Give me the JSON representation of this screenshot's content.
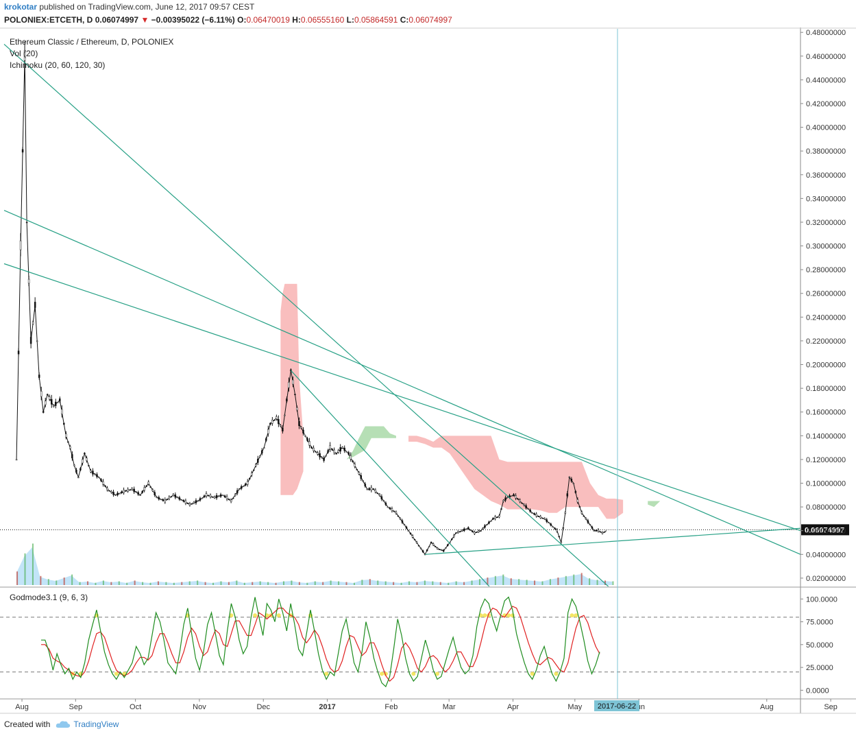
{
  "header": {
    "author": "krokotar",
    "published": "published on TradingView.com, June 12, 2017 09:57 CEST",
    "symbol": "POLONIEX:ETCETH, D",
    "last": "0.06074997",
    "arrow": "▼",
    "change": "−0.00395022 (−6.11%)",
    "o_label": "O:",
    "o": "0.06470019",
    "h_label": "H:",
    "h": "0.06555160",
    "l_label": "L:",
    "l": "0.05864591",
    "c_label": "C:",
    "c": "0.06074997"
  },
  "legend": {
    "title": "Ethereum Classic / Ethereum, D, POLONIEX",
    "vol": "Vol (20)",
    "ichimoku": "Ichimoku (20, 60, 120, 30)",
    "oscillator": "Godmode3.1 (9, 6, 3)"
  },
  "footer": {
    "created_with": "Created with",
    "brand": "TradingView"
  },
  "colors": {
    "trendline": "#26a085",
    "cloud_bear": "#f7a8a8",
    "cloud_bull": "#9ed49c",
    "volume_fill": "#a8d8f5",
    "osc_fast": "#1e8c1e",
    "osc_slow": "#e02020",
    "osc_highlight": "#f0e040",
    "price_badge": "#111111",
    "date_badge": "#7ec4d6"
  },
  "chart_data": {
    "type": "candlestick",
    "title": "Ethereum Classic / Ethereum, D, POLONIEX",
    "x_ticks": [
      "Aug",
      "Sep",
      "Oct",
      "Nov",
      "Dec",
      "2017",
      "Feb",
      "Mar",
      "Apr",
      "May",
      "Jun",
      "Aug",
      "Sep"
    ],
    "x_highlight": "2017-06-22",
    "y_ticks": [
      "0.48000000",
      "0.46000000",
      "0.44000000",
      "0.42000000",
      "0.40000000",
      "0.38000000",
      "0.36000000",
      "0.34000000",
      "0.32000000",
      "0.30000000",
      "0.28000000",
      "0.26000000",
      "0.24000000",
      "0.22000000",
      "0.20000000",
      "0.18000000",
      "0.16000000",
      "0.14000000",
      "0.12000000",
      "0.10000000",
      "0.08000000",
      "0.06000000",
      "0.04000000",
      "0.02000000"
    ],
    "ylim": [
      0.013,
      0.483
    ],
    "last_price": 0.06074997,
    "last_price_label": "0.06074997",
    "price": [
      [
        0,
        0.12
      ],
      [
        2,
        0.3
      ],
      [
        4,
        0.46
      ],
      [
        5,
        0.32
      ],
      [
        7,
        0.22
      ],
      [
        9,
        0.25
      ],
      [
        11,
        0.19
      ],
      [
        13,
        0.16
      ],
      [
        15,
        0.175
      ],
      [
        18,
        0.165
      ],
      [
        21,
        0.17
      ],
      [
        24,
        0.14
      ],
      [
        26,
        0.13
      ],
      [
        28,
        0.115
      ],
      [
        30,
        0.105
      ],
      [
        33,
        0.125
      ],
      [
        36,
        0.11
      ],
      [
        40,
        0.105
      ],
      [
        44,
        0.095
      ],
      [
        48,
        0.09
      ],
      [
        52,
        0.093
      ],
      [
        56,
        0.095
      ],
      [
        60,
        0.09
      ],
      [
        64,
        0.1
      ],
      [
        68,
        0.088
      ],
      [
        72,
        0.085
      ],
      [
        76,
        0.09
      ],
      [
        80,
        0.086
      ],
      [
        84,
        0.082
      ],
      [
        88,
        0.085
      ],
      [
        92,
        0.09
      ],
      [
        96,
        0.088
      ],
      [
        100,
        0.09
      ],
      [
        104,
        0.085
      ],
      [
        108,
        0.095
      ],
      [
        112,
        0.1
      ],
      [
        116,
        0.115
      ],
      [
        120,
        0.13
      ],
      [
        123,
        0.15
      ],
      [
        126,
        0.155
      ],
      [
        129,
        0.145
      ],
      [
        131,
        0.17
      ],
      [
        133,
        0.195
      ],
      [
        135,
        0.175
      ],
      [
        137,
        0.15
      ],
      [
        140,
        0.14
      ],
      [
        143,
        0.13
      ],
      [
        146,
        0.125
      ],
      [
        149,
        0.12
      ],
      [
        152,
        0.13
      ],
      [
        155,
        0.125
      ],
      [
        158,
        0.13
      ],
      [
        161,
        0.125
      ],
      [
        164,
        0.115
      ],
      [
        167,
        0.105
      ],
      [
        170,
        0.095
      ],
      [
        173,
        0.095
      ],
      [
        176,
        0.09
      ],
      [
        180,
        0.08
      ],
      [
        184,
        0.075
      ],
      [
        188,
        0.065
      ],
      [
        192,
        0.055
      ],
      [
        196,
        0.045
      ],
      [
        198,
        0.04
      ],
      [
        201,
        0.05
      ],
      [
        204,
        0.045
      ],
      [
        207,
        0.043
      ],
      [
        210,
        0.05
      ],
      [
        213,
        0.058
      ],
      [
        216,
        0.06
      ],
      [
        219,
        0.062
      ],
      [
        222,
        0.058
      ],
      [
        225,
        0.06
      ],
      [
        228,
        0.065
      ],
      [
        231,
        0.07
      ],
      [
        234,
        0.072
      ],
      [
        236,
        0.085
      ],
      [
        238,
        0.088
      ],
      [
        241,
        0.09
      ],
      [
        244,
        0.085
      ],
      [
        247,
        0.08
      ],
      [
        250,
        0.075
      ],
      [
        253,
        0.072
      ],
      [
        256,
        0.07
      ],
      [
        259,
        0.065
      ],
      [
        262,
        0.06
      ],
      [
        264,
        0.05
      ],
      [
        266,
        0.075
      ],
      [
        268,
        0.105
      ],
      [
        270,
        0.1
      ],
      [
        272,
        0.085
      ],
      [
        274,
        0.075
      ],
      [
        276,
        0.07
      ],
      [
        278,
        0.065
      ],
      [
        280,
        0.06
      ],
      [
        282,
        0.06
      ],
      [
        284,
        0.058
      ],
      [
        286,
        0.06
      ]
    ],
    "trendlines": [
      {
        "from": [
          -6,
          0.47
        ],
        "to": [
          308,
          -0.02
        ]
      },
      {
        "from": [
          -6,
          0.33
        ],
        "to": [
          380,
          0.04
        ]
      },
      {
        "from": [
          -6,
          0.285
        ],
        "to": [
          380,
          0.06
        ]
      },
      {
        "from": [
          198,
          0.04
        ],
        "to": [
          380,
          0.062
        ]
      },
      {
        "from": [
          133,
          0.195
        ],
        "to": [
          236,
          0.0
        ]
      }
    ],
    "cloud_bear": [
      {
        "x": [
          128,
          129,
          130,
          132,
          134,
          136,
          137,
          139
        ],
        "top": [
          0.245,
          0.26,
          0.268,
          0.268,
          0.268,
          0.268,
          0.19,
          0.14
        ],
        "bottom": [
          0.09,
          0.09,
          0.09,
          0.09,
          0.09,
          0.095,
          0.1,
          0.11
        ]
      },
      {
        "x": [
          190,
          194,
          198,
          202,
          206,
          210,
          214,
          218,
          222,
          226,
          230,
          234,
          238,
          242,
          246,
          250,
          254,
          258,
          262,
          266,
          270,
          274,
          278,
          282,
          286,
          290,
          294
        ],
        "top": [
          0.14,
          0.14,
          0.138,
          0.135,
          0.14,
          0.14,
          0.14,
          0.14,
          0.14,
          0.14,
          0.14,
          0.12,
          0.118,
          0.118,
          0.118,
          0.118,
          0.118,
          0.118,
          0.118,
          0.118,
          0.118,
          0.118,
          0.1,
          0.09,
          0.087,
          0.087,
          0.086
        ],
        "bottom": [
          0.135,
          0.135,
          0.133,
          0.13,
          0.13,
          0.125,
          0.115,
          0.105,
          0.095,
          0.09,
          0.085,
          0.082,
          0.078,
          0.078,
          0.078,
          0.078,
          0.077,
          0.075,
          0.075,
          0.08,
          0.08,
          0.08,
          0.08,
          0.08,
          0.07,
          0.07,
          0.075
        ]
      }
    ],
    "cloud_bull": [
      {
        "x": [
          160,
          163,
          166,
          169,
          172,
          175,
          178,
          181,
          184
        ],
        "top": [
          0.12,
          0.127,
          0.138,
          0.148,
          0.148,
          0.148,
          0.148,
          0.142,
          0.14
        ],
        "bottom": [
          0.12,
          0.122,
          0.125,
          0.128,
          0.138,
          0.138,
          0.138,
          0.138,
          0.138
        ]
      },
      {
        "x": [
          306,
          309,
          312
        ],
        "top": [
          0.085,
          0.085,
          0.085
        ],
        "bottom": [
          0.082,
          0.08,
          0.085
        ]
      }
    ],
    "volume": [
      18,
      42,
      55,
      12,
      8,
      6,
      10,
      14,
      4,
      5,
      3,
      6,
      4,
      5,
      3,
      6,
      4,
      3,
      5,
      4,
      3,
      4,
      5,
      6,
      4,
      3,
      5,
      4,
      6,
      3,
      4,
      5,
      4,
      3,
      5,
      6,
      4,
      3,
      5,
      4,
      6,
      5,
      4,
      3,
      7,
      8,
      6,
      5,
      4,
      3,
      5,
      4,
      6,
      5,
      4,
      3,
      5,
      4,
      6,
      8,
      10,
      12,
      14,
      9,
      8,
      7,
      6,
      5,
      8,
      10,
      12,
      14,
      16,
      9,
      7,
      6,
      5
    ],
    "oscillator": {
      "y_ticks": [
        "100.0000",
        "75.0000",
        "50.0000",
        "25.0000",
        "0.0000"
      ],
      "ylim": [
        -8,
        110
      ],
      "levels": [
        80,
        20
      ],
      "fast": [
        55,
        55,
        42,
        22,
        40,
        28,
        18,
        24,
        12,
        20,
        14,
        30,
        55,
        72,
        88,
        65,
        42,
        28,
        18,
        12,
        20,
        14,
        22,
        30,
        48,
        40,
        28,
        35,
        60,
        85,
        75,
        55,
        30,
        24,
        18,
        42,
        72,
        90,
        62,
        35,
        22,
        42,
        72,
        85,
        62,
        38,
        28,
        65,
        95,
        80,
        55,
        40,
        48,
        80,
        102,
        80,
        60,
        95,
        88,
        75,
        100,
        85,
        65,
        95,
        72,
        45,
        38,
        62,
        88,
        65,
        40,
        22,
        12,
        20,
        16,
        40,
        65,
        78,
        55,
        30,
        20,
        42,
        75,
        58,
        35,
        20,
        8,
        4,
        15,
        45,
        78,
        60,
        35,
        18,
        10,
        15,
        35,
        55,
        40,
        22,
        12,
        15,
        30,
        45,
        58,
        40,
        25,
        18,
        22,
        38,
        70,
        90,
        100,
        95,
        78,
        65,
        82,
        98,
        102,
        88,
        62,
        45,
        30,
        18,
        12,
        22,
        38,
        48,
        32,
        18,
        10,
        20,
        35,
        85,
        100,
        92,
        75,
        55,
        32,
        18,
        28,
        42
      ],
      "slow": [
        50,
        50,
        45,
        35,
        32,
        30,
        25,
        22,
        18,
        16,
        15,
        20,
        32,
        48,
        62,
        64,
        58,
        45,
        32,
        22,
        18,
        16,
        18,
        22,
        30,
        36,
        36,
        33,
        38,
        52,
        62,
        62,
        52,
        40,
        30,
        30,
        42,
        58,
        68,
        62,
        48,
        38,
        42,
        55,
        66,
        62,
        50,
        48,
        62,
        76,
        76,
        68,
        60,
        60,
        72,
        85,
        82,
        78,
        82,
        86,
        90,
        90,
        85,
        82,
        80,
        72,
        58,
        52,
        58,
        66,
        60,
        48,
        34,
        24,
        20,
        22,
        32,
        48,
        60,
        58,
        48,
        38,
        42,
        52,
        52,
        42,
        28,
        16,
        10,
        14,
        28,
        46,
        52,
        46,
        36,
        24,
        20,
        26,
        36,
        38,
        34,
        26,
        20,
        24,
        32,
        42,
        42,
        34,
        26,
        26,
        36,
        52,
        70,
        84,
        90,
        88,
        82,
        80,
        86,
        92,
        90,
        80,
        66,
        52,
        40,
        30,
        28,
        32,
        36,
        34,
        28,
        22,
        20,
        30,
        50,
        68,
        80,
        82,
        74,
        60,
        48,
        40
      ]
    }
  }
}
